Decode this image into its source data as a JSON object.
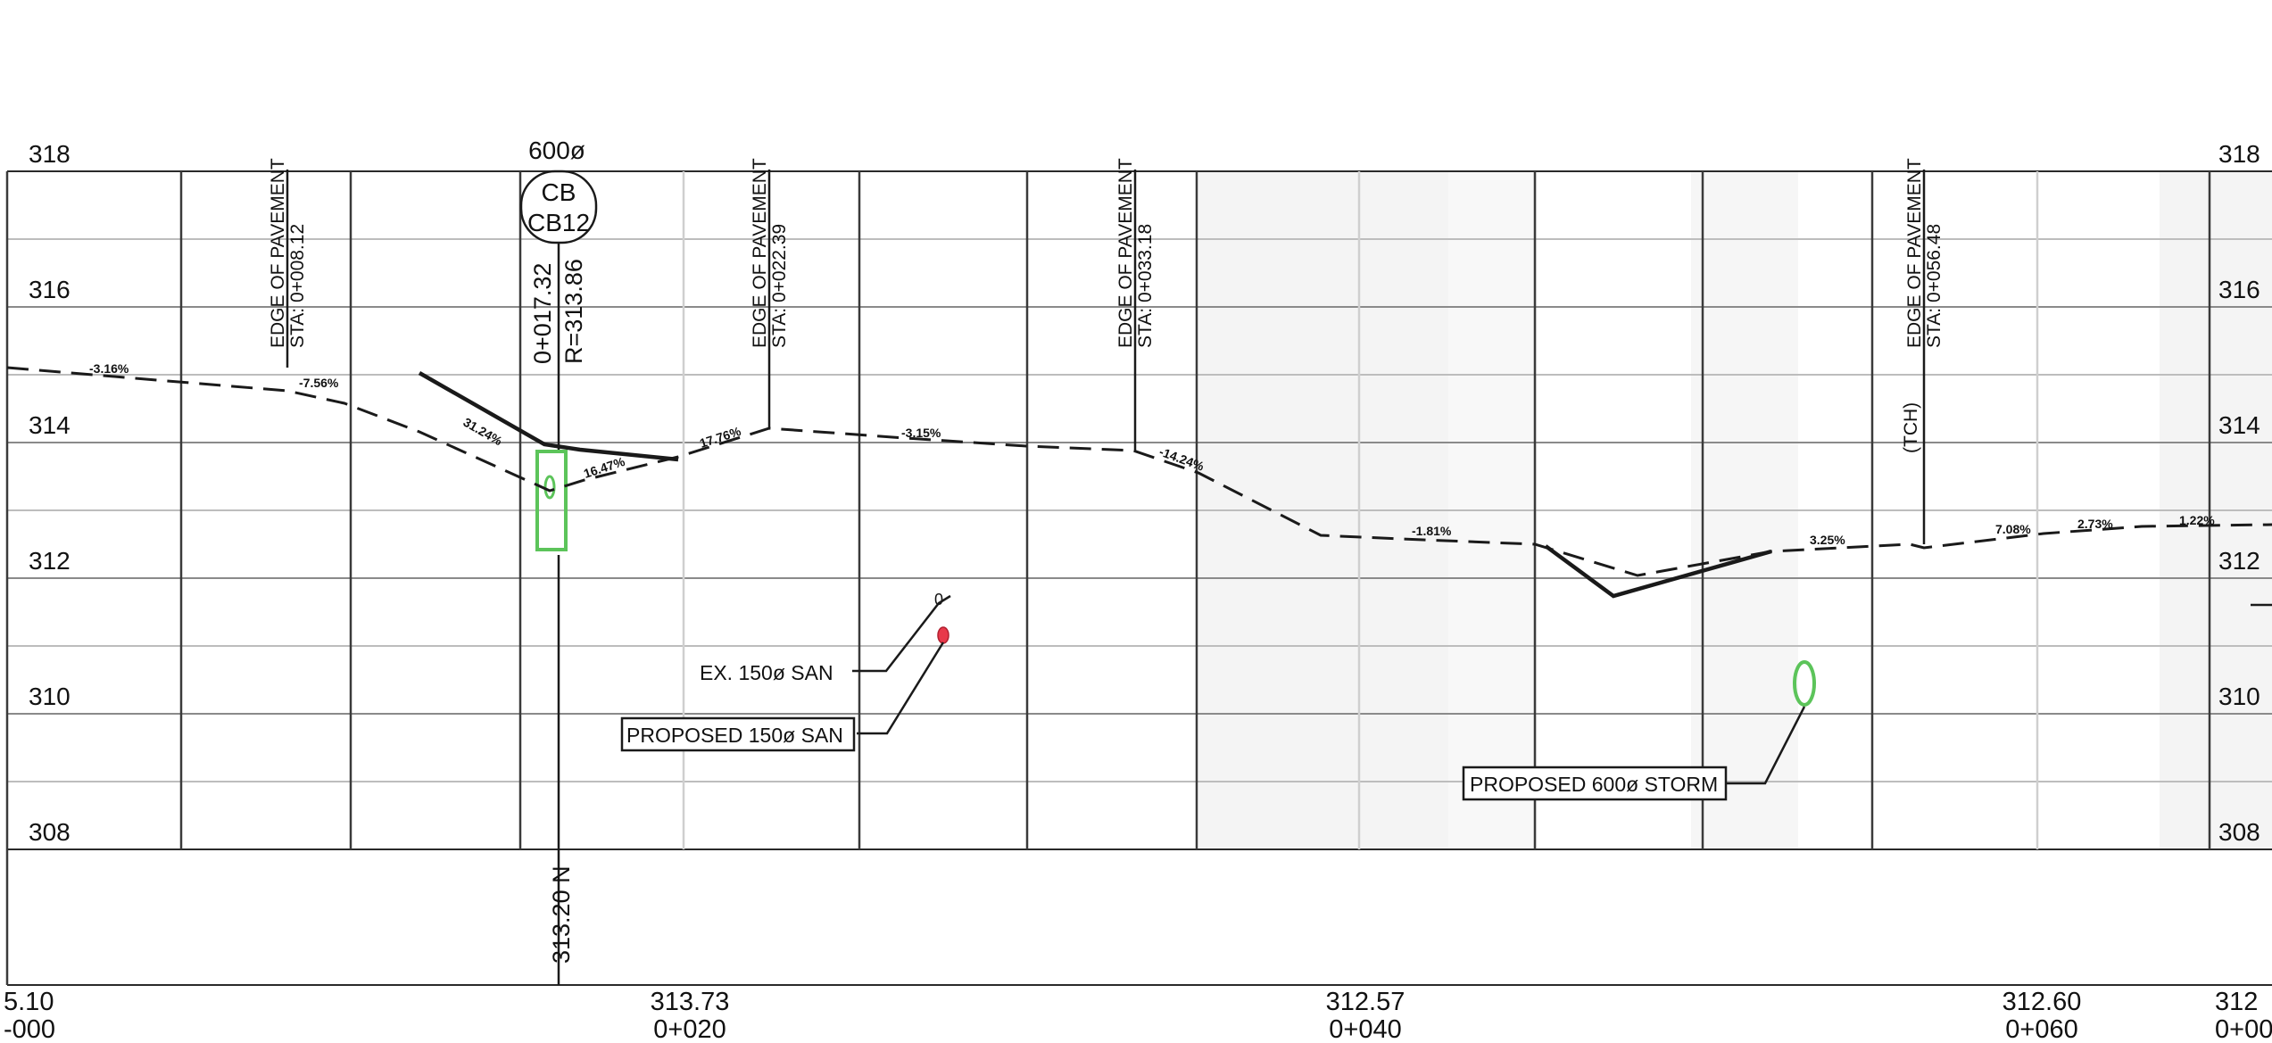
{
  "elevation_labels_left": [
    "318",
    "316",
    "314",
    "312",
    "310",
    "308"
  ],
  "elevation_labels_right": [
    "318",
    "316",
    "314",
    "312",
    "310",
    "308"
  ],
  "pipe_size_label": "600ø",
  "catch_basin": {
    "type": "CB",
    "id": "CB12",
    "station": "0+017.32",
    "rim": "R=313.86"
  },
  "bottom_vertical_label": "313.20 N",
  "station_labels": [
    {
      "elevation": "5.10",
      "station": "-000"
    },
    {
      "elevation": "313.73",
      "station": "0+020"
    },
    {
      "elevation": "312.57",
      "station": "0+040"
    },
    {
      "elevation": "312.60",
      "station": "0+060"
    },
    {
      "elevation": "312",
      "station": "0+00"
    }
  ],
  "edge_of_pavement": [
    {
      "title": "EDGE OF PAVEMENT",
      "station": "STA: 0+008.12"
    },
    {
      "title": "EDGE OF PAVEMENT",
      "station": "STA: 0+022.39"
    },
    {
      "title": "EDGE OF PAVEMENT",
      "station": "STA: 0+033.18"
    },
    {
      "title": "EDGE OF PAVEMENT",
      "station": "STA: 0+056.48"
    }
  ],
  "tch_label": "(TCH)",
  "slope_labels": [
    "-3.16%",
    "-7.56%",
    "31.24%",
    "16.47%",
    "17.76%",
    "-3.15%",
    "-14.24%",
    "-1.81%",
    "3.25%",
    "7.08%",
    "2.73%",
    "1.22%"
  ],
  "small_zero_label": "0",
  "callouts": {
    "existing_san": "EX. 150ø SAN",
    "proposed_san": "PROPOSED 150ø SAN",
    "proposed_storm": "PROPOSED 600ø STORM"
  },
  "colors": {
    "line": "#1a1a1a",
    "grid_major": "#3a3a3a",
    "grid_minor": "#bdbdbd",
    "storm": "#5cc45a",
    "sanitary_proposed": "#e8394a"
  }
}
